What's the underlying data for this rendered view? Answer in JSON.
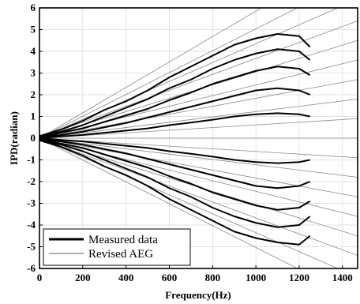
{
  "chart_data": {
    "type": "line",
    "title": "",
    "xlabel": "Frequency(Hz)",
    "ylabel": "IPD(radian)",
    "xlim": [
      0,
      1470
    ],
    "ylim": [
      -6,
      6
    ],
    "x_ticks": [
      0,
      200,
      400,
      600,
      800,
      1000,
      1200,
      1400
    ],
    "y_ticks": [
      6,
      5,
      4,
      3,
      2,
      1,
      0,
      -1,
      -2,
      -3,
      -4,
      -5,
      -6
    ],
    "grid": true,
    "legend_position": "bottom-left",
    "series": [
      {
        "name": "Measured data",
        "style": "thick",
        "color": "#000000",
        "curves": [
          {
            "x": [
              0,
              100,
              200,
              300,
              400,
              500,
              600,
              700,
              800,
              900,
              1000,
              1100,
              1200,
              1250
            ],
            "y": [
              0.1,
              0.4,
              0.8,
              1.3,
              1.7,
              2.2,
              2.8,
              3.3,
              3.8,
              4.3,
              4.6,
              4.8,
              4.7,
              4.2
            ]
          },
          {
            "x": [
              0,
              100,
              200,
              300,
              400,
              500,
              600,
              700,
              800,
              900,
              1000,
              1100,
              1200,
              1250
            ],
            "y": [
              0.1,
              0.3,
              0.6,
              1.0,
              1.4,
              1.8,
              2.3,
              2.7,
              3.2,
              3.6,
              3.9,
              4.1,
              4.0,
              3.6
            ]
          },
          {
            "x": [
              0,
              100,
              200,
              300,
              400,
              500,
              600,
              700,
              800,
              900,
              1000,
              1100,
              1200,
              1250
            ],
            "y": [
              0.05,
              0.25,
              0.45,
              0.75,
              1.05,
              1.35,
              1.75,
              2.1,
              2.5,
              2.8,
              3.1,
              3.3,
              3.2,
              2.9
            ]
          },
          {
            "x": [
              0,
              100,
              200,
              300,
              400,
              500,
              600,
              700,
              800,
              900,
              1000,
              1100,
              1200,
              1250
            ],
            "y": [
              0.05,
              0.15,
              0.3,
              0.5,
              0.7,
              0.95,
              1.2,
              1.45,
              1.7,
              1.95,
              2.2,
              2.3,
              2.2,
              2.0
            ]
          },
          {
            "x": [
              0,
              100,
              200,
              300,
              400,
              500,
              600,
              700,
              800,
              900,
              1000,
              1100,
              1200,
              1250
            ],
            "y": [
              0.0,
              0.08,
              0.15,
              0.25,
              0.35,
              0.45,
              0.6,
              0.72,
              0.85,
              1.0,
              1.1,
              1.15,
              1.1,
              1.0
            ]
          },
          {
            "x": [
              0,
              100,
              200,
              300,
              400,
              500,
              600,
              700,
              800,
              900,
              1000,
              1100,
              1200,
              1250
            ],
            "y": [
              0.0,
              -0.08,
              -0.15,
              -0.25,
              -0.35,
              -0.45,
              -0.6,
              -0.72,
              -0.85,
              -1.0,
              -1.1,
              -1.15,
              -1.1,
              -1.0
            ]
          },
          {
            "x": [
              0,
              100,
              200,
              300,
              400,
              500,
              600,
              700,
              800,
              900,
              1000,
              1100,
              1200,
              1250
            ],
            "y": [
              -0.05,
              -0.15,
              -0.3,
              -0.5,
              -0.7,
              -0.95,
              -1.2,
              -1.45,
              -1.7,
              -1.95,
              -2.2,
              -2.3,
              -2.2,
              -2.0
            ]
          },
          {
            "x": [
              0,
              100,
              200,
              300,
              400,
              500,
              600,
              700,
              800,
              900,
              1000,
              1100,
              1200,
              1250
            ],
            "y": [
              -0.05,
              -0.25,
              -0.45,
              -0.75,
              -1.05,
              -1.35,
              -1.75,
              -2.1,
              -2.5,
              -2.8,
              -3.1,
              -3.3,
              -3.2,
              -2.9
            ]
          },
          {
            "x": [
              0,
              100,
              200,
              300,
              400,
              500,
              600,
              700,
              800,
              900,
              1000,
              1100,
              1200,
              1250
            ],
            "y": [
              -0.1,
              -0.3,
              -0.6,
              -1.0,
              -1.4,
              -1.8,
              -2.3,
              -2.7,
              -3.2,
              -3.6,
              -3.9,
              -4.1,
              -4.0,
              -3.6
            ]
          },
          {
            "x": [
              0,
              100,
              200,
              300,
              400,
              500,
              600,
              700,
              800,
              900,
              1000,
              1100,
              1200,
              1250
            ],
            "y": [
              -0.1,
              -0.4,
              -0.8,
              -1.3,
              -1.7,
              -2.2,
              -2.8,
              -3.3,
              -3.8,
              -4.3,
              -4.6,
              -4.8,
              -4.9,
              -4.5
            ]
          }
        ]
      },
      {
        "name": "Revised AEG",
        "style": "thin",
        "color": "#888888",
        "curves": [
          {
            "x": [
              0,
              1470
            ],
            "y": [
              0,
              8.6
            ]
          },
          {
            "x": [
              0,
              1470
            ],
            "y": [
              0,
              7.4
            ]
          },
          {
            "x": [
              0,
              1470
            ],
            "y": [
              0,
              6.4
            ]
          },
          {
            "x": [
              0,
              1470
            ],
            "y": [
              0,
              5.4
            ]
          },
          {
            "x": [
              0,
              1470
            ],
            "y": [
              0,
              4.5
            ]
          },
          {
            "x": [
              0,
              1470
            ],
            "y": [
              0,
              3.6
            ]
          },
          {
            "x": [
              0,
              1470
            ],
            "y": [
              0,
              2.7
            ]
          },
          {
            "x": [
              0,
              1470
            ],
            "y": [
              0,
              1.8
            ]
          },
          {
            "x": [
              0,
              1470
            ],
            "y": [
              0,
              0.9
            ]
          },
          {
            "x": [
              0,
              1470
            ],
            "y": [
              0,
              0.0
            ]
          },
          {
            "x": [
              0,
              1470
            ],
            "y": [
              0,
              -0.9
            ]
          },
          {
            "x": [
              0,
              1470
            ],
            "y": [
              0,
              -1.8
            ]
          },
          {
            "x": [
              0,
              1470
            ],
            "y": [
              0,
              -2.7
            ]
          },
          {
            "x": [
              0,
              1470
            ],
            "y": [
              0,
              -3.6
            ]
          },
          {
            "x": [
              0,
              1470
            ],
            "y": [
              0,
              -4.5
            ]
          },
          {
            "x": [
              0,
              1470
            ],
            "y": [
              0,
              -5.4
            ]
          },
          {
            "x": [
              0,
              1470
            ],
            "y": [
              0,
              -6.4
            ]
          },
          {
            "x": [
              0,
              1470
            ],
            "y": [
              0,
              -7.4
            ]
          }
        ]
      }
    ]
  }
}
